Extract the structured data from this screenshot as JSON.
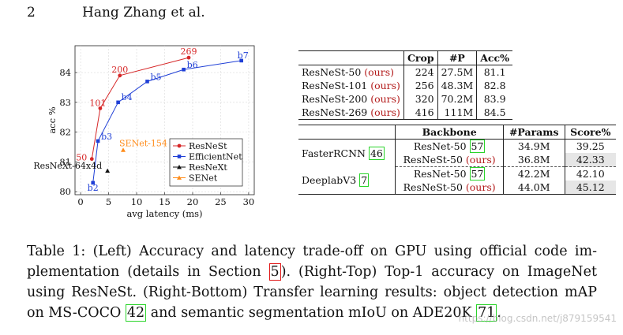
{
  "header": {
    "page_number": "2",
    "authors": "Hang Zhang et al."
  },
  "chart_data": {
    "type": "line",
    "xlabel": "avg latency (ms)",
    "ylabel": "acc %",
    "xlim": [
      -1,
      31
    ],
    "ylim": [
      79.9,
      84.9
    ],
    "xticks": [
      "0",
      "5",
      "10",
      "15",
      "20",
      "25",
      "30"
    ],
    "yticks": [
      "80",
      "81",
      "82",
      "83",
      "84"
    ],
    "legend_position": "bottom-right",
    "series": [
      {
        "name": "ResNeSt",
        "color": "#d62728",
        "marker": "circle",
        "x": [
          2.0,
          3.5,
          7.0,
          19.3
        ],
        "y": [
          81.1,
          82.8,
          83.9,
          84.5
        ],
        "labels": [
          "50",
          "101",
          "200",
          "269"
        ]
      },
      {
        "name": "EfficientNet",
        "color": "#1f3fd6",
        "marker": "square",
        "x": [
          2.2,
          3.1,
          6.7,
          11.9,
          18.4,
          28.7
        ],
        "y": [
          80.3,
          81.7,
          83.0,
          83.7,
          84.1,
          84.4
        ],
        "labels": [
          "b2",
          "b3",
          "b4",
          "b5",
          "b6",
          "b7"
        ]
      },
      {
        "name": "ResNeXt",
        "color": "#111111",
        "marker": "triangle",
        "x": [
          4.8
        ],
        "y": [
          80.7
        ],
        "labels": [
          "ResNeXt-64x4d"
        ]
      },
      {
        "name": "SENet",
        "color": "#ff8c1a",
        "marker": "triangle",
        "x": [
          7.6
        ],
        "y": [
          81.4
        ],
        "labels": [
          "SENet-154"
        ]
      }
    ]
  },
  "top_table": {
    "headers": [
      "",
      "Crop",
      "#P",
      "Acc%"
    ],
    "rows": [
      {
        "model": "ResNeSt-50",
        "ours": "(ours)",
        "crop": "224",
        "params": "27.5M",
        "acc": "81.1"
      },
      {
        "model": "ResNeSt-101",
        "ours": "(ours)",
        "crop": "256",
        "params": "48.3M",
        "acc": "82.8"
      },
      {
        "model": "ResNeSt-200",
        "ours": "(ours)",
        "crop": "320",
        "params": "70.2M",
        "acc": "83.9"
      },
      {
        "model": "ResNeSt-269",
        "ours": "(ours)",
        "crop": "416",
        "params": "111M",
        "acc": "84.5"
      }
    ]
  },
  "bottom_table": {
    "headers": [
      "",
      "Backbone",
      "#Params",
      "Score%"
    ],
    "groups": [
      {
        "task": "FasterRCNN",
        "task_ref": "46",
        "rows": [
          {
            "backbone": "ResNet-50",
            "ref": "57",
            "ours": "",
            "params": "34.9M",
            "score": "39.25",
            "shade": false
          },
          {
            "backbone": "ResNeSt-50",
            "ref": "",
            "ours": "(ours)",
            "params": "36.8M",
            "score": "42.33",
            "shade": true
          }
        ]
      },
      {
        "task": "DeeplabV3",
        "task_ref": "7",
        "rows": [
          {
            "backbone": "ResNet-50",
            "ref": "57",
            "ours": "",
            "params": "42.2M",
            "score": "42.10",
            "shade": false
          },
          {
            "backbone": "ResNeSt-50",
            "ref": "",
            "ours": "(ours)",
            "params": "44.0M",
            "score": "45.12",
            "shade": true
          }
        ]
      }
    ]
  },
  "caption": {
    "p1": "Table 1: (Left) Accuracy and latency trade-off on GPU using official code im-plementation (details in Section ",
    "ref_section": "5",
    "p2": "). (Right-Top) Top-1 accuracy on ImageNet using ResNeSt. (Right-Bottom) Transfer learning results: object detection mAP on MS-COCO ",
    "ref_coco": "42",
    "p3": " and semantic segmentation mIoU on ADE20K ",
    "ref_ade": "71",
    "p4": "."
  },
  "watermark": "https://blog.csdn.net/j879159541"
}
